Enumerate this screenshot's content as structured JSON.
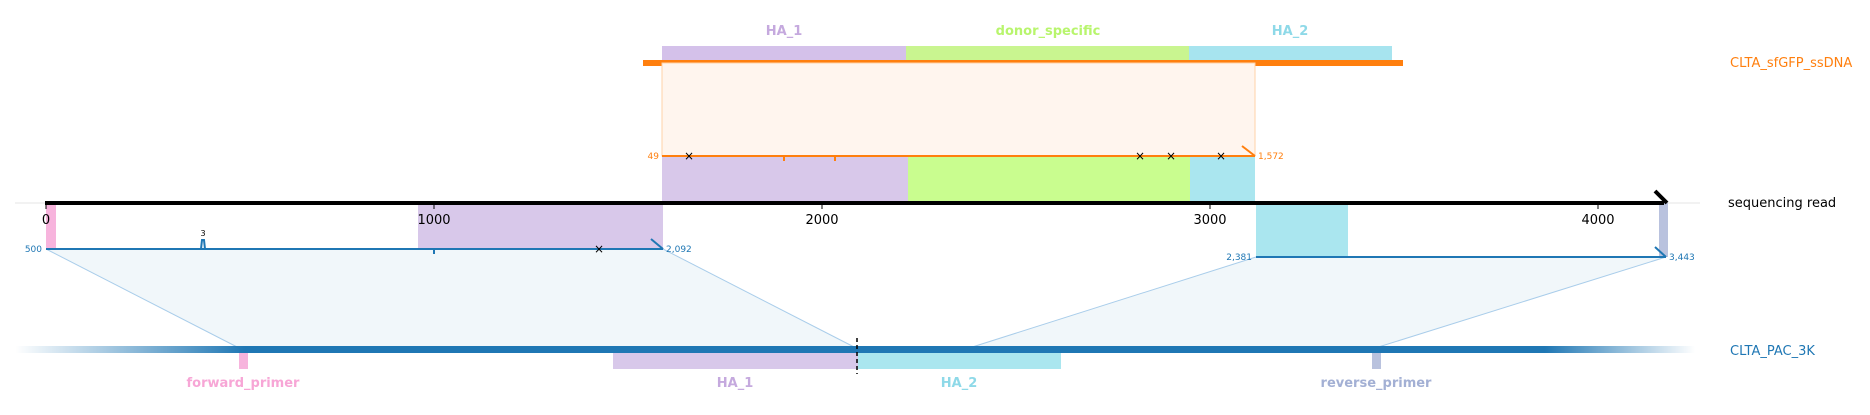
{
  "rows": {
    "donor": {
      "label": "CLTA_sfGFP_ssDNA",
      "color": "#ff7f0e"
    },
    "read": {
      "label": "sequencing read",
      "color": "#000000"
    },
    "target": {
      "label": "CLTA_PAC_3K",
      "color": "#1f77b4"
    }
  },
  "donor_features": [
    {
      "name": "HA_1",
      "color": "#c5a9de"
    },
    {
      "name": "donor_specific",
      "color": "#b8f56d"
    },
    {
      "name": "HA_2",
      "color": "#8ed9e8"
    }
  ],
  "target_features": [
    {
      "name": "forward_primer",
      "color": "#f7a6d6"
    },
    {
      "name": "HA_1",
      "color": "#c5a9de"
    },
    {
      "name": "HA_2",
      "color": "#8ed9e8"
    },
    {
      "name": "reverse_primer",
      "color": "#a3b0d4"
    }
  ],
  "read_axis": {
    "ticks": [
      "0",
      "1000",
      "2000",
      "3000",
      "4000"
    ]
  },
  "donor_alignment": {
    "start": "49",
    "end": "1,572"
  },
  "target_alignment_1": {
    "start": "500",
    "end": "2,092",
    "insertion_label": "3"
  },
  "target_alignment_2": {
    "start": "2,381",
    "end": "3,443"
  }
}
